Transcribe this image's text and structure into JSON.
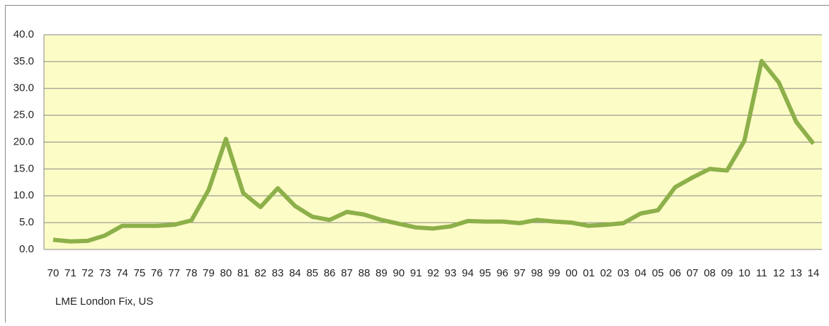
{
  "chart_data": {
    "type": "line",
    "categories": [
      "70",
      "71",
      "72",
      "73",
      "74",
      "75",
      "76",
      "77",
      "78",
      "79",
      "80",
      "81",
      "82",
      "83",
      "84",
      "85",
      "86",
      "87",
      "88",
      "89",
      "90",
      "91",
      "92",
      "93",
      "94",
      "95",
      "96",
      "97",
      "98",
      "99",
      "00",
      "01",
      "02",
      "03",
      "04",
      "05",
      "06",
      "07",
      "08",
      "09",
      "10",
      "11",
      "12",
      "13",
      "14"
    ],
    "series": [
      {
        "name": "LME London Fix, US",
        "color": "#8db04a",
        "values": [
          1.8,
          1.5,
          1.6,
          2.6,
          4.4,
          4.4,
          4.4,
          4.6,
          5.4,
          11.1,
          20.6,
          10.5,
          7.9,
          11.4,
          8.1,
          6.1,
          5.5,
          7.0,
          6.5,
          5.5,
          4.8,
          4.1,
          3.9,
          4.3,
          5.3,
          5.2,
          5.2,
          4.9,
          5.5,
          5.2,
          5.0,
          4.4,
          4.6,
          4.9,
          6.7,
          7.3,
          11.6,
          13.4,
          15.0,
          14.7,
          20.2,
          35.1,
          31.1,
          23.8,
          19.7
        ]
      }
    ],
    "ylim": [
      0,
      40
    ],
    "yticks": [
      {
        "value": 0,
        "label": "0.0"
      },
      {
        "value": 5,
        "label": "5.0"
      },
      {
        "value": 10,
        "label": "10.0"
      },
      {
        "value": 15,
        "label": "15.0"
      },
      {
        "value": 20,
        "label": "20.0"
      },
      {
        "value": 25,
        "label": "25.0"
      },
      {
        "value": 30,
        "label": "30.0"
      },
      {
        "value": 35,
        "label": "35.0"
      },
      {
        "value": 40,
        "label": "40.0"
      }
    ],
    "grid": true
  }
}
